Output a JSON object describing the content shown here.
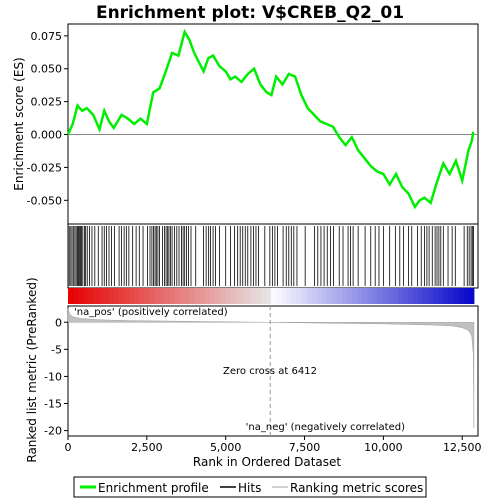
{
  "chart_data": {
    "type": "line",
    "title": "Enrichment plot: V$CREB_Q2_01",
    "xlabel": "Rank in Ordered Dataset",
    "xlim": [
      0,
      13000
    ],
    "x_ticks": [
      0,
      2500,
      5000,
      7500,
      10000,
      12500
    ],
    "x_tick_labels": [
      "0",
      "2,500",
      "5,000",
      "7,500",
      "10,000",
      "12,500"
    ],
    "top_panel": {
      "ylabel": "Enrichment score (ES)",
      "ylim": [
        -0.068,
        0.084
      ],
      "y_ticks": [
        0.075,
        0.05,
        0.025,
        0.0,
        -0.025,
        -0.05
      ],
      "y_tick_labels": [
        "0.075",
        "0.050",
        "0.025",
        "0.000",
        "-0.025",
        "-0.050"
      ],
      "series": [
        {
          "name": "Enrichment profile",
          "color": "#00ee00",
          "x": [
            0,
            150,
            300,
            450,
            600,
            800,
            1000,
            1150,
            1300,
            1450,
            1700,
            1900,
            2100,
            2300,
            2500,
            2700,
            2900,
            3100,
            3300,
            3500,
            3700,
            3850,
            4000,
            4150,
            4300,
            4450,
            4600,
            4800,
            5000,
            5150,
            5300,
            5500,
            5700,
            5900,
            6100,
            6300,
            6450,
            6600,
            6800,
            7000,
            7200,
            7400,
            7600,
            7800,
            8000,
            8200,
            8400,
            8600,
            8800,
            9000,
            9200,
            9400,
            9600,
            9800,
            10000,
            10200,
            10400,
            10600,
            10800,
            11000,
            11150,
            11300,
            11500,
            11700,
            11900,
            12100,
            12300,
            12500,
            12700,
            12800,
            12850
          ],
          "y": [
            0.0,
            0.008,
            0.022,
            0.018,
            0.02,
            0.015,
            0.004,
            0.018,
            0.01,
            0.005,
            0.015,
            0.012,
            0.008,
            0.012,
            0.008,
            0.032,
            0.035,
            0.048,
            0.062,
            0.06,
            0.078,
            0.072,
            0.062,
            0.055,
            0.048,
            0.058,
            0.06,
            0.052,
            0.048,
            0.042,
            0.044,
            0.04,
            0.046,
            0.05,
            0.038,
            0.032,
            0.03,
            0.044,
            0.038,
            0.046,
            0.044,
            0.03,
            0.02,
            0.015,
            0.01,
            0.008,
            0.006,
            -0.002,
            -0.008,
            -0.002,
            -0.012,
            -0.018,
            -0.024,
            -0.028,
            -0.03,
            -0.038,
            -0.03,
            -0.04,
            -0.045,
            -0.055,
            -0.05,
            -0.048,
            -0.052,
            -0.036,
            -0.022,
            -0.03,
            -0.02,
            -0.035,
            -0.012,
            -0.005,
            0.002
          ]
        }
      ]
    },
    "hits_panel": {
      "name": "Hits",
      "hit_ranks": [
        40,
        90,
        130,
        180,
        220,
        260,
        300,
        330,
        360,
        400,
        430,
        470,
        520,
        560,
        610,
        680,
        760,
        850,
        960,
        1080,
        1150,
        1220,
        1300,
        1380,
        1470,
        1620,
        1700,
        1780,
        1850,
        1930,
        2050,
        2160,
        2260,
        2380,
        2520,
        2600,
        2660,
        2710,
        2760,
        2800,
        2850,
        2900,
        3000,
        3060,
        3110,
        3160,
        3200,
        3250,
        3300,
        3380,
        3450,
        3520,
        3600,
        3650,
        3700,
        3760,
        3820,
        3900,
        4050,
        4300,
        4380,
        4460,
        4520,
        4600,
        4680,
        4800,
        5000,
        5150,
        5280,
        5380,
        5460,
        5540,
        5620,
        5700,
        5800,
        5880,
        5960,
        6040,
        6240,
        6400,
        6480,
        6560,
        6640,
        6820,
        6920,
        7000,
        7080,
        7160,
        7260,
        7520,
        7820,
        7920,
        8020,
        8120,
        8220,
        8320,
        8420,
        8600,
        8720,
        8880,
        8960,
        9040,
        9200,
        9420,
        9600,
        9740,
        9860,
        10000,
        10200,
        10380,
        10520,
        10640,
        10800,
        10900,
        11080,
        11200,
        11300,
        11380,
        11450,
        11550,
        11640,
        11700,
        11760,
        11820,
        11900,
        12050,
        12180,
        12280,
        12560,
        12660,
        12720,
        12780,
        12820,
        12860
      ]
    },
    "rank_panel": {
      "ylabel": "Ranked list metric (PreRanked)",
      "ylim": [
        -21,
        3
      ],
      "y_ticks": [
        0,
        -5,
        -10,
        -15,
        -20
      ],
      "y_tick_labels": [
        "0",
        "-5",
        "-10",
        "-15",
        "-20"
      ],
      "series": [
        {
          "name": "Ranking metric scores",
          "color": "#c0c0c0",
          "x": [
            0,
            50,
            150,
            400,
            1000,
            2000,
            4000,
            6412,
            8000,
            10000,
            11500,
            12200,
            12500,
            12700,
            12800,
            12850,
            12870
          ],
          "y": [
            2.6,
            1.6,
            1.0,
            0.7,
            0.45,
            0.3,
            0.15,
            0.0,
            -0.15,
            -0.3,
            -0.5,
            -0.7,
            -1.0,
            -1.5,
            -2.5,
            -6.0,
            -19.5
          ]
        }
      ],
      "zero_cross": 6412,
      "annotations": {
        "pos_label": "'na_pos' (positively correlated)",
        "neg_label": "'na_neg' (negatively correlated)",
        "zero_cross_label": "Zero cross at 6412"
      },
      "pos_color": "#cc0000",
      "neg_color": "#0000cc"
    },
    "legend": {
      "placement": "bottom",
      "entries": [
        {
          "label": "Enrichment profile",
          "color": "#00ee00"
        },
        {
          "label": "Hits",
          "color": "#000000"
        },
        {
          "label": "Ranking metric scores",
          "color": "#c0c0c0"
        }
      ]
    }
  }
}
